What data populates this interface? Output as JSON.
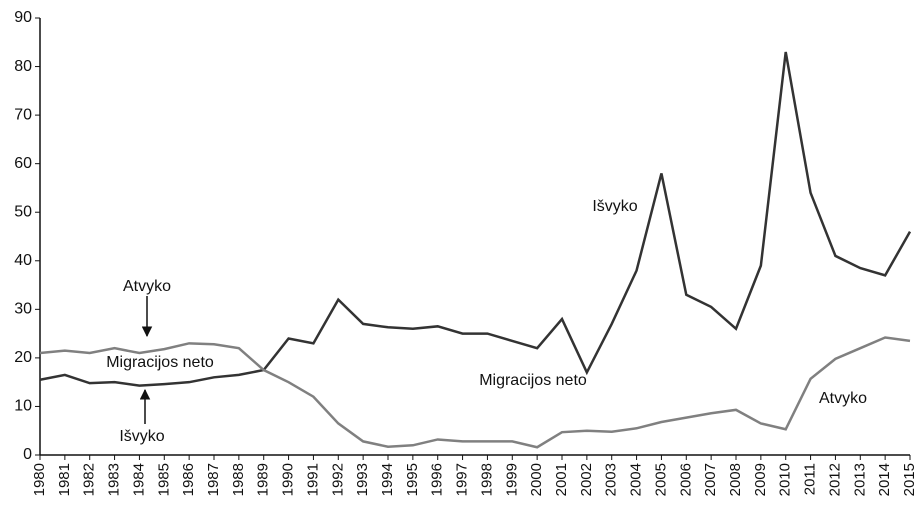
{
  "chart_data": {
    "type": "line",
    "categories": [
      "1980",
      "1981",
      "1982",
      "1983",
      "1984",
      "1985",
      "1986",
      "1987",
      "1988",
      "1989",
      "1990",
      "1991",
      "1992",
      "1993",
      "1994",
      "1995",
      "1996",
      "1997",
      "1998",
      "1999",
      "2000",
      "2001",
      "2002",
      "2003",
      "2004",
      "2005",
      "2006",
      "2007",
      "2008",
      "2009",
      "2010",
      "2011",
      "2012",
      "2013",
      "2014",
      "2015"
    ],
    "series": [
      {
        "color": "#333333",
        "values": [
          15.5,
          16.5,
          14.8,
          15,
          14.3,
          14.6,
          15,
          16,
          16.5,
          17.5,
          24,
          23,
          32,
          27,
          26.3,
          26,
          26.5,
          25,
          25,
          23.5,
          22,
          28,
          17,
          27,
          38,
          58,
          33,
          30.5,
          26,
          39,
          83,
          54,
          41,
          38.5,
          37,
          46
        ]
      },
      {
        "color": "#808080",
        "values": [
          21,
          21.5,
          21,
          22,
          21,
          21.8,
          23,
          22.8,
          22,
          17.5,
          15,
          12,
          6.5,
          2.8,
          1.7,
          2,
          3.2,
          2.8,
          2.8,
          2.8,
          1.6,
          4.7,
          5,
          4.8,
          5.5,
          6.8,
          7.7,
          8.6,
          9.3,
          6.5,
          5.3,
          15.7,
          19.8,
          22,
          24.2,
          23.5
        ]
      }
    ],
    "annotations": [
      "Atvyko",
      "Migracijos neto",
      "Išvyko",
      "Išvyko",
      "Migracijos neto",
      "Atvyko"
    ],
    "ylim": [
      0,
      90
    ],
    "yticks": [
      0,
      10,
      20,
      30,
      40,
      50,
      60,
      70,
      80,
      90
    ],
    "grid": false
  }
}
